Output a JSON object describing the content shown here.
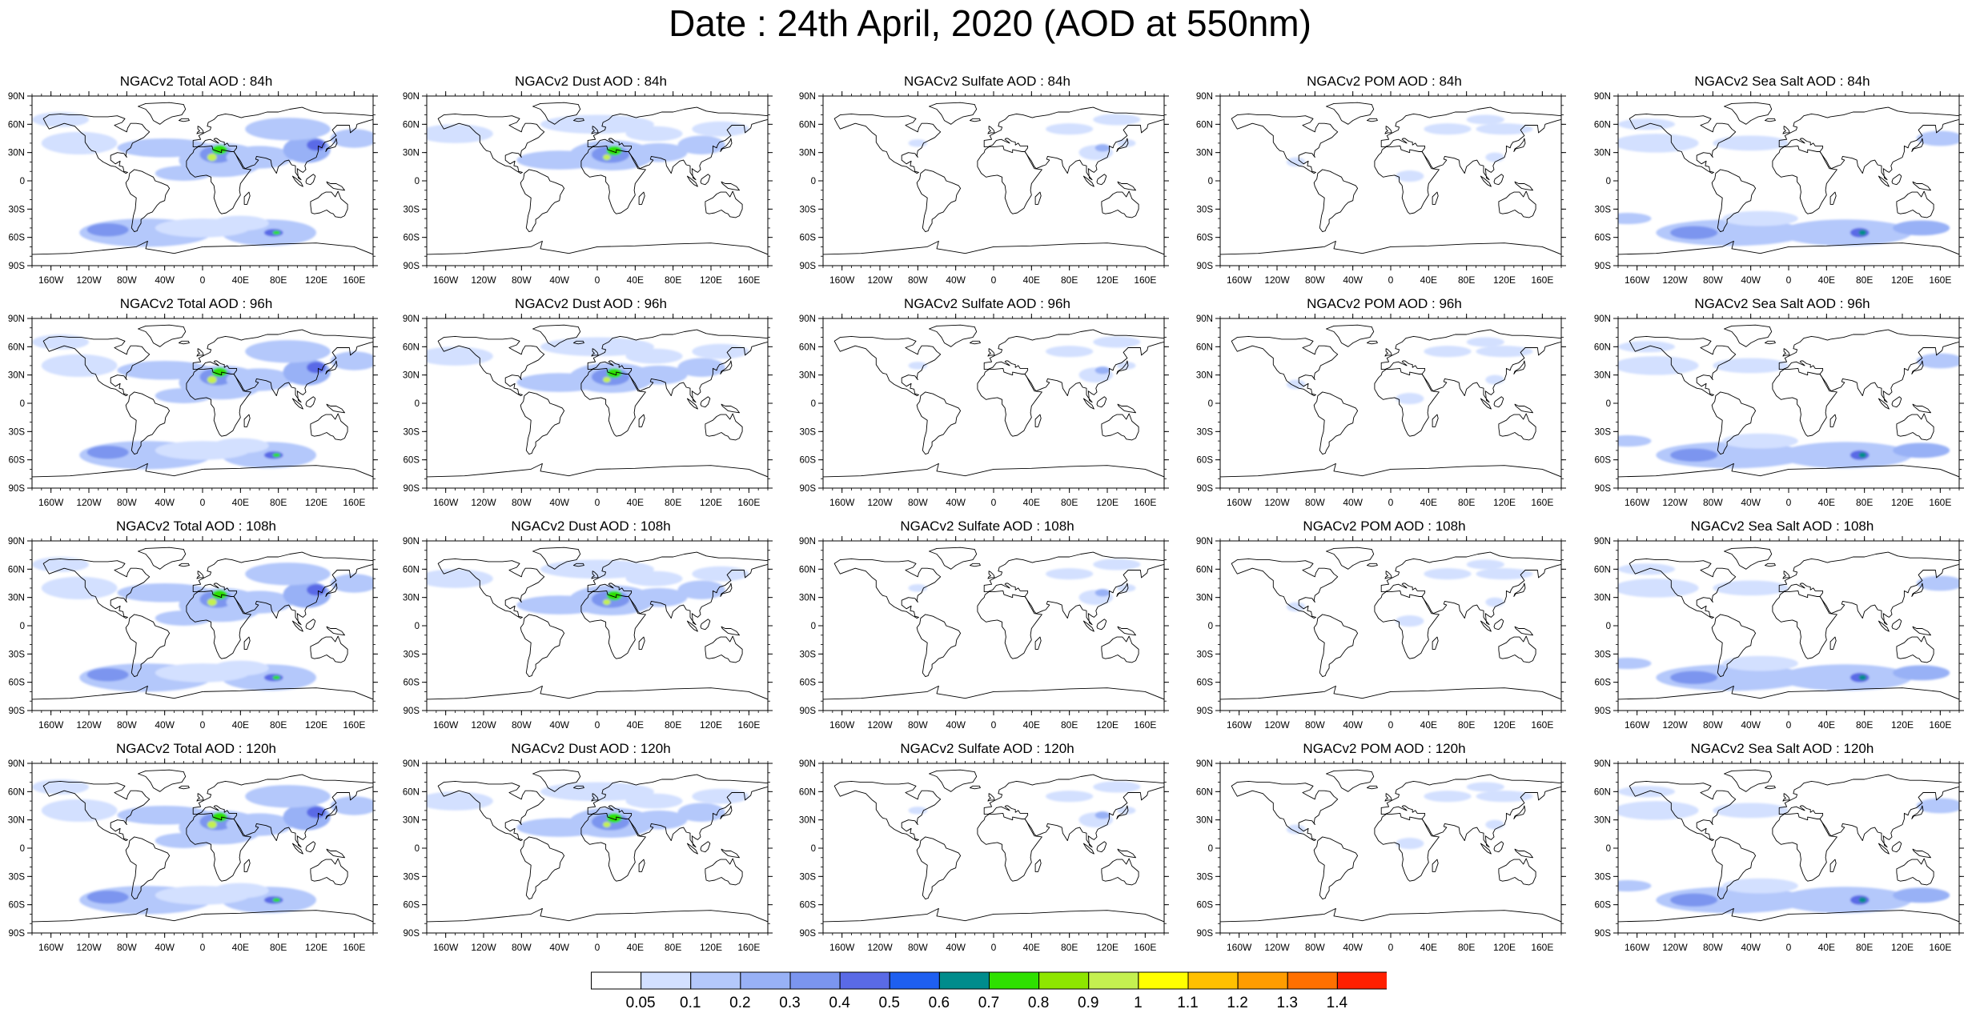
{
  "title": "Date : 24th April, 2020 (AOD at 550nm)",
  "lat_labels": [
    "90N",
    "60N",
    "30N",
    "0",
    "30S",
    "60S",
    "90S"
  ],
  "lon_labels": [
    "160W",
    "120W",
    "80W",
    "40W",
    "0",
    "40E",
    "80E",
    "120E",
    "160E"
  ],
  "panels": [
    {
      "title": "NGACv2 Total AOD : 84h",
      "species": "total"
    },
    {
      "title": "NGACv2 Dust AOD : 84h",
      "species": "dust"
    },
    {
      "title": "NGACv2 Sulfate AOD : 84h",
      "species": "sulfate"
    },
    {
      "title": "NGACv2 POM AOD : 84h",
      "species": "pom"
    },
    {
      "title": "NGACv2 Sea Salt AOD : 84h",
      "species": "seasalt"
    },
    {
      "title": "NGACv2 Total AOD : 96h",
      "species": "total"
    },
    {
      "title": "NGACv2 Dust AOD : 96h",
      "species": "dust"
    },
    {
      "title": "NGACv2 Sulfate AOD : 96h",
      "species": "sulfate"
    },
    {
      "title": "NGACv2 POM AOD : 96h",
      "species": "pom"
    },
    {
      "title": "NGACv2 Sea Salt AOD : 96h",
      "species": "seasalt"
    },
    {
      "title": "NGACv2 Total AOD : 108h",
      "species": "total"
    },
    {
      "title": "NGACv2 Dust AOD : 108h",
      "species": "dust"
    },
    {
      "title": "NGACv2 Sulfate AOD : 108h",
      "species": "sulfate"
    },
    {
      "title": "NGACv2 POM AOD : 108h",
      "species": "pom"
    },
    {
      "title": "NGACv2 Sea Salt AOD : 108h",
      "species": "seasalt"
    },
    {
      "title": "NGACv2 Total AOD : 120h",
      "species": "total"
    },
    {
      "title": "NGACv2 Dust AOD : 120h",
      "species": "dust"
    },
    {
      "title": "NGACv2 Sulfate AOD : 120h",
      "species": "sulfate"
    },
    {
      "title": "NGACv2 POM AOD : 120h",
      "species": "pom"
    },
    {
      "title": "NGACv2 Sea Salt  AOD : 120h",
      "species": "seasalt"
    }
  ],
  "colorbar": {
    "labels": [
      "0.05",
      "0.1",
      "0.2",
      "0.3",
      "0.4",
      "0.5",
      "0.6",
      "0.7",
      "0.8",
      "0.9",
      "1",
      "1.1",
      "1.2",
      "1.3",
      "1.4"
    ],
    "colors": [
      "#ffffff",
      "#d3e0ff",
      "#b4c8fb",
      "#98b1f6",
      "#7b95ef",
      "#5a6ae6",
      "#1e5ff0",
      "#008c8c",
      "#2ee000",
      "#8ee600",
      "#c4f050",
      "#ffff00",
      "#ffc000",
      "#ff9c00",
      "#ff7000",
      "#ff2000"
    ]
  }
}
